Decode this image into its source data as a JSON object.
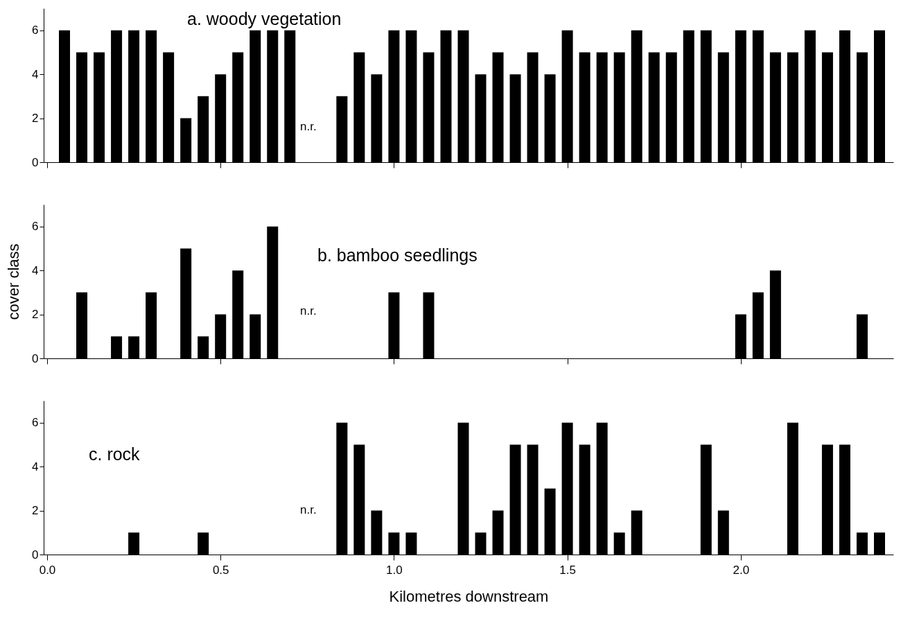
{
  "chart_data": [
    {
      "type": "bar",
      "title": "a. woody vegetation",
      "x": [
        0.05,
        0.1,
        0.15,
        0.2,
        0.25,
        0.3,
        0.35,
        0.4,
        0.45,
        0.5,
        0.55,
        0.6,
        0.65,
        0.7,
        0.85,
        0.9,
        0.95,
        1.0,
        1.05,
        1.1,
        1.15,
        1.2,
        1.25,
        1.3,
        1.35,
        1.4,
        1.45,
        1.5,
        1.55,
        1.6,
        1.65,
        1.7,
        1.75,
        1.8,
        1.85,
        1.9,
        1.95,
        2.0,
        2.05,
        2.1,
        2.15,
        2.2,
        2.25,
        2.3,
        2.35,
        2.4
      ],
      "series": [
        {
          "color": "#000000",
          "values": [
            6,
            5,
            5,
            6,
            6,
            6,
            5,
            2,
            3,
            4,
            5,
            6,
            6,
            6,
            3,
            5,
            4,
            6,
            6,
            5,
            6,
            6,
            4,
            5,
            4,
            5,
            4,
            6,
            5,
            5,
            5,
            6,
            5,
            5,
            6,
            6,
            5,
            6,
            6,
            5,
            5,
            6,
            5,
            6,
            5,
            6
          ]
        }
      ],
      "annotations": [
        "n.r."
      ],
      "xlim": [
        0,
        2.43
      ],
      "xticks": [
        0,
        0.5,
        1.0,
        1.5,
        2.0
      ],
      "ylim": [
        0,
        7
      ],
      "yticks": [
        0,
        2,
        4,
        6
      ],
      "tick_labels": "y",
      "grid": false
    },
    {
      "type": "bar",
      "title": "b. bamboo seedlings",
      "ylabel": "cover class",
      "x": [
        0.1,
        0.2,
        0.25,
        0.3,
        0.4,
        0.45,
        0.5,
        0.55,
        0.6,
        0.65,
        1.0,
        1.1,
        2.0,
        2.05,
        2.1,
        2.35
      ],
      "series": [
        {
          "color": "#000000",
          "values": [
            3,
            1,
            1,
            3,
            5,
            1,
            2,
            4,
            2,
            6,
            3,
            3,
            2,
            3,
            4,
            2
          ]
        }
      ],
      "annotations": [
        "n.r."
      ],
      "xlim": [
        0,
        2.43
      ],
      "xticks": [
        0,
        0.5,
        1.0,
        1.5,
        2.0
      ],
      "ylim": [
        0,
        7
      ],
      "yticks": [
        0,
        2,
        4,
        6
      ],
      "tick_labels": "y",
      "grid": false
    },
    {
      "type": "bar",
      "title": "c. rock",
      "xlabel": "Kilometres downstream",
      "x": [
        0.25,
        0.45,
        0.85,
        0.9,
        0.95,
        1.0,
        1.05,
        1.2,
        1.25,
        1.3,
        1.35,
        1.4,
        1.45,
        1.5,
        1.55,
        1.6,
        1.65,
        1.7,
        1.9,
        1.95,
        2.15,
        2.25,
        2.3,
        2.35,
        2.4
      ],
      "series": [
        {
          "color": "#000000",
          "values": [
            1,
            1,
            6,
            5,
            2,
            1,
            1,
            6,
            1,
            2,
            5,
            5,
            3,
            6,
            5,
            6,
            1,
            2,
            5,
            2,
            6,
            5,
            5,
            1,
            1
          ]
        }
      ],
      "annotations": [
        "n.r."
      ],
      "xlim": [
        0,
        2.43
      ],
      "xticks": [
        {
          "value": 0,
          "label": "0.0"
        },
        0.5,
        {
          "value": 1.0,
          "label": "1.0"
        },
        1.5,
        {
          "value": 2.0,
          "label": "2.0"
        }
      ],
      "ylim": [
        0,
        7
      ],
      "yticks": [
        0,
        2,
        4,
        6
      ],
      "grid": false
    }
  ]
}
